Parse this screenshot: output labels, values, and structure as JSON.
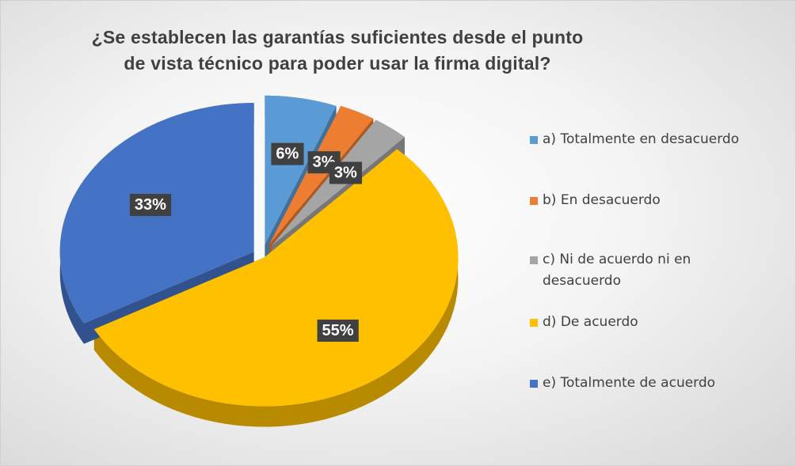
{
  "chart_data": {
    "type": "pie",
    "title": "¿Se establecen las garantías suficientes desde el punto de vista técnico para poder usar la firma digital?",
    "categories": [
      "a) Totalmente en desacuerdo",
      "b) En desacuerdo",
      "c) Ni de acuerdo ni en desacuerdo",
      "d) De acuerdo",
      "e) Totalmente de acuerdo"
    ],
    "values": [
      6,
      3,
      3,
      55,
      33
    ],
    "value_labels": [
      "6%",
      "3%",
      "3%",
      "55%",
      "33%"
    ],
    "colors": [
      "#5b9bd5",
      "#ed7d31",
      "#a5a5a5",
      "#ffc000",
      "#4472c4"
    ],
    "legend": "right"
  }
}
